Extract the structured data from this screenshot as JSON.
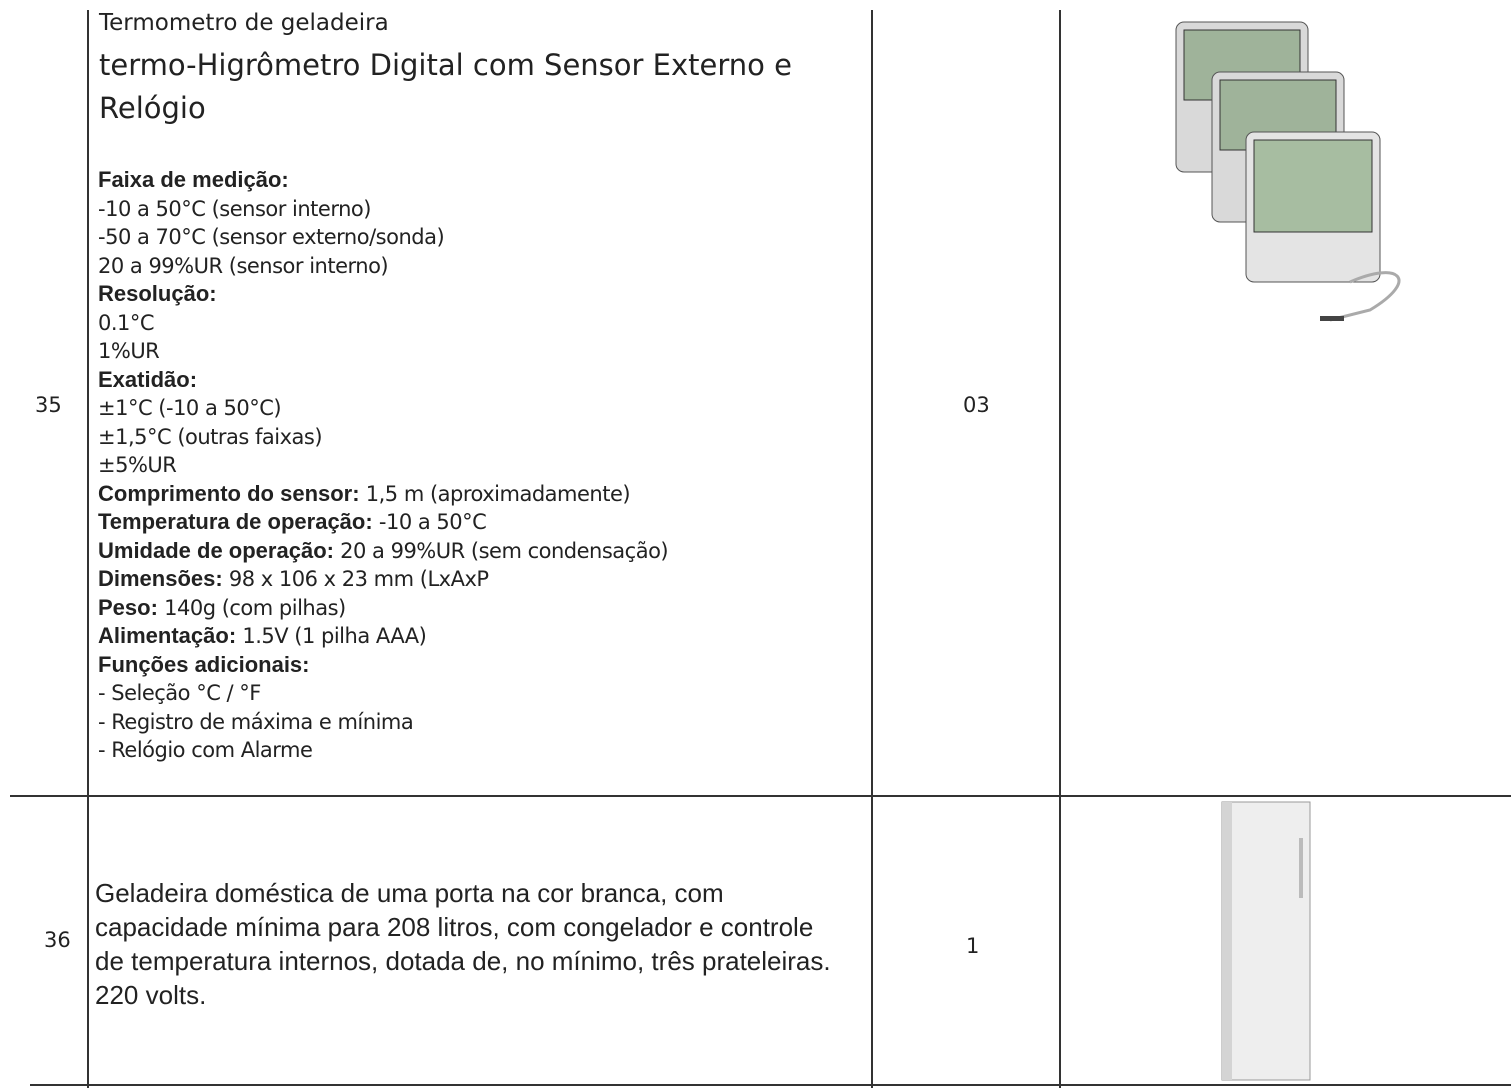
{
  "table": {
    "rows": [
      {
        "number": "35",
        "title": "Termometro de geladeira",
        "subtitle": "termo-Higrômetro Digital com Sensor Externo e Relógio",
        "lines": [
          {
            "label": "Faixa de medição:"
          },
          {
            "text": "-10 a 50°C (sensor interno)"
          },
          {
            "text": "-50 a 70°C (sensor externo/sonda)"
          },
          {
            "text": "20 a 99%UR  (sensor interno)"
          },
          {
            "label": "Resolução:"
          },
          {
            "text": "0.1°C"
          },
          {
            "text": "1%UR"
          },
          {
            "label": "Exatidão:"
          },
          {
            "text": "±1°C (-10 a 50°C)"
          },
          {
            "text": "±1,5°C (outras faixas)"
          },
          {
            "text": "±5%UR"
          },
          {
            "label": "Comprimento do sensor:",
            "text": "1,5 m (aproximadamente)"
          },
          {
            "label": "Temperatura de operação:",
            "text": "-10 a 50°C"
          },
          {
            "label": "Umidade de operação:",
            "text": "20 a 99%UR (sem condensação)"
          },
          {
            "label": "Dimensões:",
            "text": "98 x 106 x 23 mm (LxAxP"
          },
          {
            "label": "Peso:",
            "text": "140g (com pilhas)"
          },
          {
            "label": "Alimentação:",
            "text": "1.5V (1 pilha AAA)"
          },
          {
            "label": "Funções adicionais:"
          },
          {
            "text": "- Seleção °C / °F"
          },
          {
            "text": "- Registro de máxima e mínima"
          },
          {
            "text": "- Relógio com Alarme"
          }
        ],
        "quantity": "03"
      },
      {
        "number": "36",
        "description": "Geladeira doméstica de uma porta na cor branca, com capacidade mínima para 208 litros, com congelador e controle de temperatura internos, dotada de, no mínimo, três prateleiras. 220 volts.",
        "quantity": "1"
      }
    ]
  }
}
